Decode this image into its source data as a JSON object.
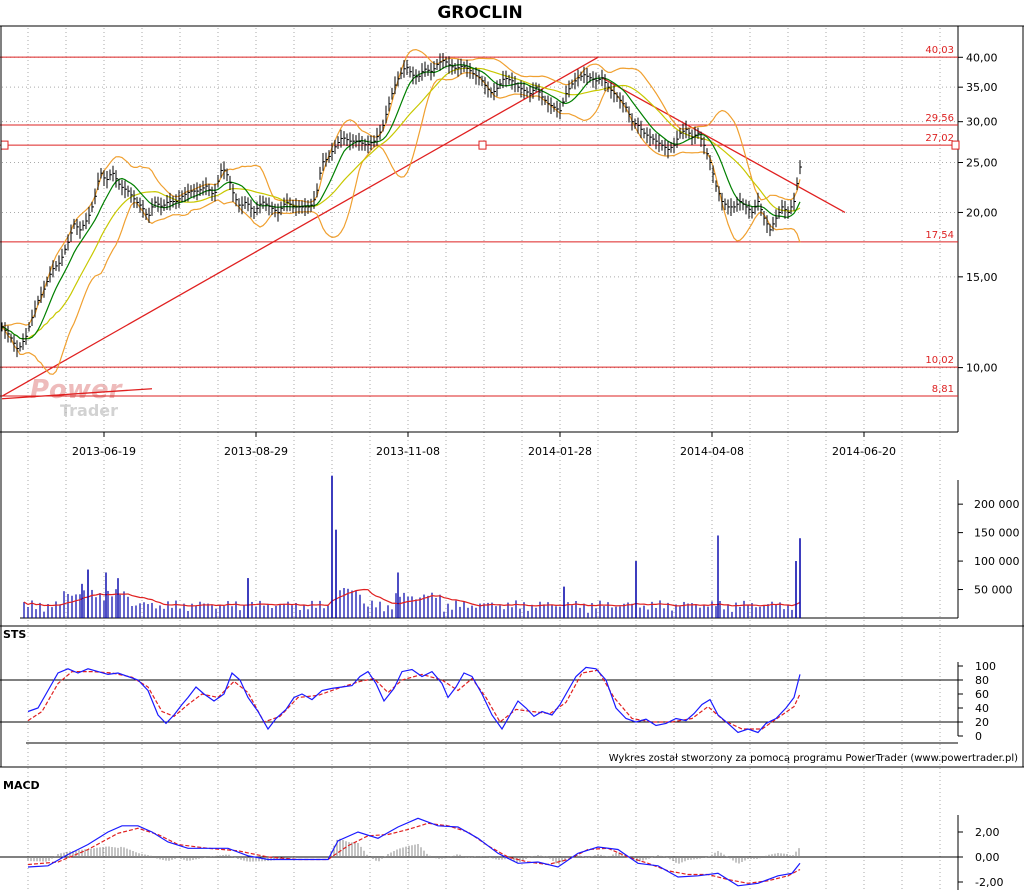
{
  "title": "GROCLIN",
  "footer": "Wykres został stworzony za pomocą programu PowerTrader (www.powertrader.pl)",
  "watermark": {
    "line1": "Power",
    "line2": "Trader"
  },
  "colors": {
    "price_bar": "#000000",
    "ma_short": "#008000",
    "ma_long": "#c8c800",
    "bollinger": "#f0a030",
    "level_line": "#dd2222",
    "trend_line": "#e02020",
    "volume_bar": "#0000aa",
    "volume_ma": "#e02020",
    "sts_k": "#1a1aff",
    "sts_d": "#e02020",
    "macd_line": "#1a1aff",
    "macd_signal": "#e02020",
    "macd_hist": "#888888",
    "grid": "#aaaaaa"
  },
  "chart_data": [
    {
      "type": "line",
      "name": "price",
      "title": "GROCLIN",
      "y_scale": "log",
      "ylim": [
        7.5,
        46
      ],
      "y_ticks": [
        "40,00",
        "35,00",
        "30,00",
        "25,00",
        "20,00",
        "15,00",
        "10,00"
      ],
      "x_ticks": [
        "2013-06-19",
        "2013-08-29",
        "2013-11-08",
        "2014-01-28",
        "2014-04-08",
        "2014-06-20"
      ],
      "horizontal_levels": [
        "40,03",
        "29,56",
        "27,02",
        "17,54",
        "10,02",
        "8,81"
      ],
      "close_series": [
        [
          0,
          12.0
        ],
        [
          8,
          11.5
        ],
        [
          16,
          10.8
        ],
        [
          24,
          11.5
        ],
        [
          30,
          12.5
        ],
        [
          36,
          13.5
        ],
        [
          42,
          14.2
        ],
        [
          50,
          15.5
        ],
        [
          58,
          16.0
        ],
        [
          66,
          17.5
        ],
        [
          72,
          19.0
        ],
        [
          78,
          18.5
        ],
        [
          86,
          19.5
        ],
        [
          92,
          21.0
        ],
        [
          98,
          24.0
        ],
        [
          104,
          23.0
        ],
        [
          110,
          24.0
        ],
        [
          118,
          22.5
        ],
        [
          126,
          22.0
        ],
        [
          134,
          21.0
        ],
        [
          140,
          20.5
        ],
        [
          146,
          19.5
        ],
        [
          152,
          21.0
        ],
        [
          160,
          20.5
        ],
        [
          166,
          21.0
        ],
        [
          174,
          21.0
        ],
        [
          180,
          21.5
        ],
        [
          188,
          22.0
        ],
        [
          196,
          22.0
        ],
        [
          204,
          22.5
        ],
        [
          212,
          21.5
        ],
        [
          220,
          24.5
        ],
        [
          226,
          23.5
        ],
        [
          232,
          21.5
        ],
        [
          238,
          20.5
        ],
        [
          244,
          21.0
        ],
        [
          252,
          20.0
        ],
        [
          260,
          21.0
        ],
        [
          268,
          20.5
        ],
        [
          276,
          20.0
        ],
        [
          284,
          21.0
        ],
        [
          292,
          20.5
        ],
        [
          300,
          20.5
        ],
        [
          308,
          20.5
        ],
        [
          314,
          21.5
        ],
        [
          320,
          25.0
        ],
        [
          326,
          25.5
        ],
        [
          334,
          27.0
        ],
        [
          340,
          28.0
        ],
        [
          348,
          27.5
        ],
        [
          356,
          27.5
        ],
        [
          364,
          27.0
        ],
        [
          372,
          27.5
        ],
        [
          380,
          29.0
        ],
        [
          386,
          32.0
        ],
        [
          392,
          35.0
        ],
        [
          398,
          37.0
        ],
        [
          404,
          38.5
        ],
        [
          410,
          37.0
        ],
        [
          416,
          36.5
        ],
        [
          422,
          38.0
        ],
        [
          430,
          37.5
        ],
        [
          436,
          39.0
        ],
        [
          442,
          39.5
        ],
        [
          448,
          38.5
        ],
        [
          454,
          38.0
        ],
        [
          460,
          38.5
        ],
        [
          466,
          38.0
        ],
        [
          472,
          37.0
        ],
        [
          478,
          36.5
        ],
        [
          484,
          35.0
        ],
        [
          490,
          34.0
        ],
        [
          496,
          35.0
        ],
        [
          502,
          36.5
        ],
        [
          510,
          36.0
        ],
        [
          516,
          35.0
        ],
        [
          522,
          34.5
        ],
        [
          528,
          34.0
        ],
        [
          534,
          35.0
        ],
        [
          540,
          33.5
        ],
        [
          546,
          32.5
        ],
        [
          552,
          32.0
        ],
        [
          558,
          31.5
        ],
        [
          564,
          34.0
        ],
        [
          570,
          35.5
        ],
        [
          576,
          36.5
        ],
        [
          582,
          37.0
        ],
        [
          588,
          36.5
        ],
        [
          594,
          36.0
        ],
        [
          600,
          36.5
        ],
        [
          606,
          35.0
        ],
        [
          612,
          34.0
        ],
        [
          618,
          33.0
        ],
        [
          624,
          32.0
        ],
        [
          630,
          30.0
        ],
        [
          636,
          29.5
        ],
        [
          642,
          28.5
        ],
        [
          648,
          28.0
        ],
        [
          654,
          27.5
        ],
        [
          660,
          27.0
        ],
        [
          666,
          26.5
        ],
        [
          672,
          27.0
        ],
        [
          678,
          28.5
        ],
        [
          684,
          29.0
        ],
        [
          690,
          28.0
        ],
        [
          696,
          28.5
        ],
        [
          702,
          27.0
        ],
        [
          708,
          25.0
        ],
        [
          714,
          22.5
        ],
        [
          720,
          21.0
        ],
        [
          726,
          20.5
        ],
        [
          732,
          20.5
        ],
        [
          738,
          21.0
        ],
        [
          744,
          20.5
        ],
        [
          750,
          20.0
        ],
        [
          756,
          21.0
        ],
        [
          762,
          19.5
        ],
        [
          768,
          18.5
        ],
        [
          774,
          19.5
        ],
        [
          780,
          20.5
        ],
        [
          786,
          20.0
        ],
        [
          792,
          21.0
        ],
        [
          798,
          24.5
        ]
      ],
      "trend_lines": [
        {
          "from": [
            0,
            8.8
          ],
          "to": [
            596,
            40.0
          ]
        },
        {
          "from": [
            600,
            36.5
          ],
          "to": [
            843,
            20.0
          ]
        },
        {
          "from": [
            0,
            8.7
          ],
          "to": [
            150,
            9.1
          ]
        }
      ]
    },
    {
      "type": "bar",
      "name": "volume",
      "ylim": [
        0,
        260000
      ],
      "y_ticks": [
        "50 000",
        "100 000",
        "150 000",
        "200 000"
      ],
      "spikes": [
        [
          80,
          60000
        ],
        [
          86,
          85000
        ],
        [
          104,
          80000
        ],
        [
          116,
          70000
        ],
        [
          246,
          70000
        ],
        [
          330,
          250000
        ],
        [
          334,
          155000
        ],
        [
          396,
          80000
        ],
        [
          562,
          55000
        ],
        [
          634,
          100000
        ],
        [
          716,
          145000
        ],
        [
          794,
          100000
        ],
        [
          798,
          140000
        ]
      ]
    },
    {
      "type": "line",
      "name": "STS",
      "title": "STS",
      "ylim": [
        0,
        100
      ],
      "y_ticks": [
        "100",
        "80",
        "60",
        "40",
        "20",
        "0"
      ],
      "reference_lines": [
        80,
        20
      ],
      "series_k": [
        [
          26,
          35
        ],
        [
          36,
          40
        ],
        [
          46,
          65
        ],
        [
          56,
          90
        ],
        [
          66,
          96
        ],
        [
          76,
          90
        ],
        [
          86,
          96
        ],
        [
          96,
          92
        ],
        [
          106,
          88
        ],
        [
          116,
          90
        ],
        [
          126,
          85
        ],
        [
          136,
          80
        ],
        [
          146,
          65
        ],
        [
          156,
          30
        ],
        [
          164,
          18
        ],
        [
          172,
          30
        ],
        [
          180,
          45
        ],
        [
          186,
          55
        ],
        [
          194,
          70
        ],
        [
          202,
          60
        ],
        [
          212,
          50
        ],
        [
          222,
          60
        ],
        [
          230,
          90
        ],
        [
          238,
          80
        ],
        [
          246,
          55
        ],
        [
          256,
          35
        ],
        [
          266,
          10
        ],
        [
          274,
          25
        ],
        [
          284,
          38
        ],
        [
          292,
          55
        ],
        [
          300,
          60
        ],
        [
          310,
          52
        ],
        [
          320,
          65
        ],
        [
          330,
          68
        ],
        [
          340,
          70
        ],
        [
          350,
          72
        ],
        [
          358,
          85
        ],
        [
          366,
          92
        ],
        [
          374,
          75
        ],
        [
          382,
          50
        ],
        [
          392,
          68
        ],
        [
          400,
          92
        ],
        [
          410,
          95
        ],
        [
          420,
          85
        ],
        [
          430,
          92
        ],
        [
          440,
          75
        ],
        [
          446,
          55
        ],
        [
          454,
          70
        ],
        [
          462,
          90
        ],
        [
          470,
          85
        ],
        [
          480,
          60
        ],
        [
          490,
          30
        ],
        [
          500,
          10
        ],
        [
          508,
          30
        ],
        [
          516,
          50
        ],
        [
          524,
          40
        ],
        [
          532,
          28
        ],
        [
          540,
          35
        ],
        [
          550,
          30
        ],
        [
          558,
          45
        ],
        [
          566,
          65
        ],
        [
          574,
          85
        ],
        [
          584,
          98
        ],
        [
          594,
          96
        ],
        [
          604,
          80
        ],
        [
          614,
          40
        ],
        [
          624,
          25
        ],
        [
          634,
          20
        ],
        [
          644,
          24
        ],
        [
          654,
          15
        ],
        [
          664,
          18
        ],
        [
          674,
          25
        ],
        [
          684,
          22
        ],
        [
          692,
          32
        ],
        [
          700,
          45
        ],
        [
          708,
          52
        ],
        [
          716,
          30
        ],
        [
          726,
          18
        ],
        [
          736,
          5
        ],
        [
          746,
          10
        ],
        [
          756,
          5
        ],
        [
          764,
          18
        ],
        [
          774,
          25
        ],
        [
          784,
          40
        ],
        [
          792,
          55
        ],
        [
          798,
          88
        ]
      ],
      "series_d": [
        [
          26,
          22
        ],
        [
          40,
          35
        ],
        [
          56,
          75
        ],
        [
          70,
          92
        ],
        [
          90,
          92
        ],
        [
          110,
          90
        ],
        [
          130,
          84
        ],
        [
          146,
          70
        ],
        [
          160,
          35
        ],
        [
          172,
          28
        ],
        [
          186,
          45
        ],
        [
          200,
          60
        ],
        [
          216,
          55
        ],
        [
          232,
          78
        ],
        [
          246,
          62
        ],
        [
          262,
          20
        ],
        [
          278,
          28
        ],
        [
          296,
          55
        ],
        [
          316,
          58
        ],
        [
          336,
          68
        ],
        [
          358,
          78
        ],
        [
          372,
          82
        ],
        [
          386,
          62
        ],
        [
          400,
          80
        ],
        [
          420,
          88
        ],
        [
          440,
          80
        ],
        [
          456,
          65
        ],
        [
          470,
          82
        ],
        [
          484,
          55
        ],
        [
          498,
          20
        ],
        [
          514,
          38
        ],
        [
          530,
          35
        ],
        [
          548,
          32
        ],
        [
          564,
          48
        ],
        [
          580,
          90
        ],
        [
          596,
          94
        ],
        [
          612,
          55
        ],
        [
          630,
          25
        ],
        [
          650,
          20
        ],
        [
          670,
          20
        ],
        [
          690,
          25
        ],
        [
          706,
          42
        ],
        [
          722,
          22
        ],
        [
          740,
          10
        ],
        [
          760,
          10
        ],
        [
          778,
          28
        ],
        [
          792,
          42
        ],
        [
          798,
          60
        ]
      ]
    },
    {
      "type": "line",
      "name": "MACD",
      "title": "MACD",
      "ylim": [
        -2.3,
        2.8
      ],
      "y_ticks": [
        "2,00",
        "0,00",
        "-2,00"
      ],
      "macd": [
        [
          26,
          -0.8
        ],
        [
          46,
          -0.7
        ],
        [
          66,
          0.2
        ],
        [
          86,
          1.0
        ],
        [
          106,
          2.0
        ],
        [
          120,
          2.5
        ],
        [
          136,
          2.5
        ],
        [
          150,
          2.0
        ],
        [
          166,
          1.2
        ],
        [
          186,
          0.7
        ],
        [
          206,
          0.7
        ],
        [
          226,
          0.7
        ],
        [
          246,
          0.1
        ],
        [
          266,
          -0.2
        ],
        [
          296,
          -0.2
        ],
        [
          326,
          -0.2
        ],
        [
          336,
          1.3
        ],
        [
          356,
          2.0
        ],
        [
          376,
          1.5
        ],
        [
          396,
          2.4
        ],
        [
          416,
          3.1
        ],
        [
          436,
          2.5
        ],
        [
          456,
          2.4
        ],
        [
          476,
          1.5
        ],
        [
          496,
          0.3
        ],
        [
          516,
          -0.5
        ],
        [
          536,
          -0.4
        ],
        [
          556,
          -0.8
        ],
        [
          576,
          0.3
        ],
        [
          596,
          0.8
        ],
        [
          616,
          0.6
        ],
        [
          636,
          -0.5
        ],
        [
          656,
          -0.7
        ],
        [
          676,
          -1.6
        ],
        [
          696,
          -1.5
        ],
        [
          716,
          -1.3
        ],
        [
          736,
          -2.3
        ],
        [
          756,
          -2.1
        ],
        [
          776,
          -1.5
        ],
        [
          790,
          -1.3
        ],
        [
          798,
          -0.5
        ]
      ],
      "signal": [
        [
          26,
          -0.6
        ],
        [
          56,
          -0.4
        ],
        [
          86,
          0.6
        ],
        [
          116,
          1.9
        ],
        [
          136,
          2.3
        ],
        [
          156,
          1.8
        ],
        [
          176,
          1.0
        ],
        [
          206,
          0.7
        ],
        [
          236,
          0.5
        ],
        [
          266,
          0.0
        ],
        [
          296,
          -0.2
        ],
        [
          326,
          -0.2
        ],
        [
          346,
          0.9
        ],
        [
          366,
          1.7
        ],
        [
          386,
          1.8
        ],
        [
          406,
          2.2
        ],
        [
          426,
          2.7
        ],
        [
          446,
          2.5
        ],
        [
          466,
          2.0
        ],
        [
          486,
          0.9
        ],
        [
          506,
          0.0
        ],
        [
          526,
          -0.4
        ],
        [
          546,
          -0.6
        ],
        [
          566,
          -0.2
        ],
        [
          586,
          0.6
        ],
        [
          606,
          0.7
        ],
        [
          626,
          0.0
        ],
        [
          646,
          -0.5
        ],
        [
          666,
          -1.1
        ],
        [
          686,
          -1.4
        ],
        [
          706,
          -1.4
        ],
        [
          726,
          -1.8
        ],
        [
          746,
          -2.1
        ],
        [
          766,
          -1.9
        ],
        [
          786,
          -1.5
        ],
        [
          798,
          -1.0
        ]
      ]
    }
  ]
}
